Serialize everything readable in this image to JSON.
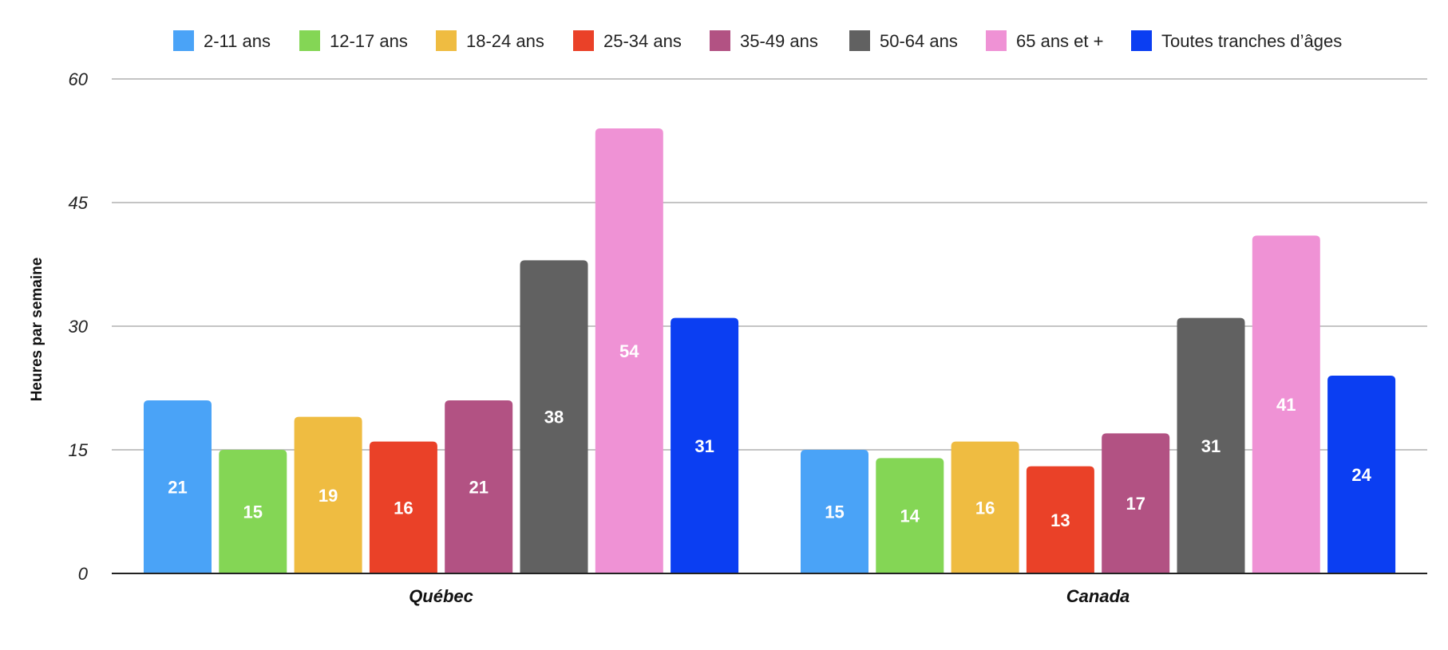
{
  "chart_data": {
    "type": "bar",
    "ylabel": "Heures par semaine",
    "ylim": [
      0,
      60
    ],
    "yticks": [
      0,
      15,
      30,
      45,
      60
    ],
    "grid": true,
    "legend_position": "top",
    "categories": [
      "Québec",
      "Canada"
    ],
    "series": [
      {
        "name": "2-11 ans",
        "color": "#4AA3F7",
        "values": [
          21,
          15
        ]
      },
      {
        "name": "12-17 ans",
        "color": "#84D655",
        "values": [
          15,
          14
        ]
      },
      {
        "name": "18-24 ans",
        "color": "#EFBC41",
        "values": [
          19,
          16
        ]
      },
      {
        "name": "25-34 ans",
        "color": "#EA4128",
        "values": [
          16,
          13
        ]
      },
      {
        "name": "35-49 ans",
        "color": "#B25283",
        "values": [
          21,
          17
        ]
      },
      {
        "name": "50-64 ans",
        "color": "#616161",
        "values": [
          38,
          31
        ]
      },
      {
        "name": "65 ans et +",
        "color": "#EF92D5",
        "values": [
          54,
          41
        ]
      },
      {
        "name": "Toutes tranches d’âges",
        "color": "#0B3EF2",
        "values": [
          31,
          24
        ]
      }
    ]
  }
}
